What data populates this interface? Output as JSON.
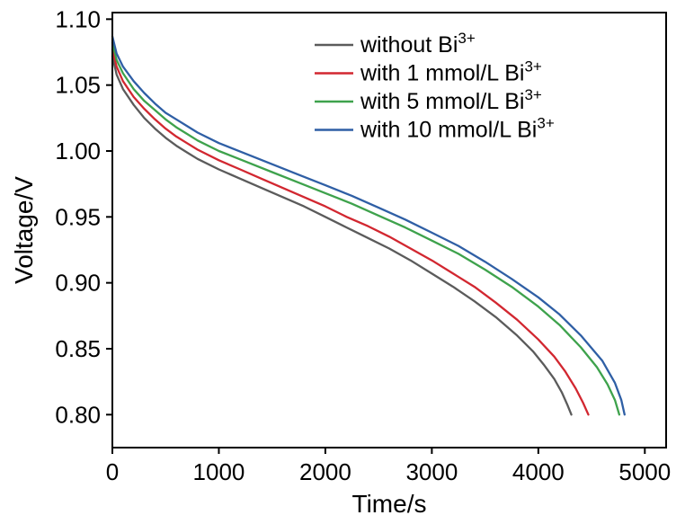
{
  "figure": {
    "background": "#ffffff"
  },
  "chart_data": {
    "type": "line",
    "title": "",
    "xlabel": "Time/s",
    "ylabel": "Voltage/V",
    "xlim": [
      0,
      5200
    ],
    "ylim": [
      0.775,
      1.105
    ],
    "x_ticks": [
      0,
      1000,
      2000,
      3000,
      4000,
      5000
    ],
    "y_ticks": [
      "0.80",
      "0.85",
      "0.90",
      "0.95",
      "1.00",
      "1.05",
      "1.10"
    ],
    "grid": false,
    "legend_position": "top-right",
    "axis_color": "#000000",
    "series": [
      {
        "label": "without Bi",
        "label_sup": "3+",
        "color": "#5b5b5b",
        "points": [
          [
            0,
            1.072
          ],
          [
            40,
            1.058
          ],
          [
            100,
            1.047
          ],
          [
            200,
            1.035
          ],
          [
            300,
            1.025
          ],
          [
            400,
            1.017
          ],
          [
            500,
            1.01
          ],
          [
            600,
            1.004
          ],
          [
            700,
            0.999
          ],
          [
            800,
            0.994
          ],
          [
            1000,
            0.986
          ],
          [
            1200,
            0.979
          ],
          [
            1400,
            0.972
          ],
          [
            1600,
            0.965
          ],
          [
            1800,
            0.958
          ],
          [
            2000,
            0.95
          ],
          [
            2200,
            0.942
          ],
          [
            2400,
            0.934
          ],
          [
            2600,
            0.926
          ],
          [
            2800,
            0.917
          ],
          [
            3000,
            0.907
          ],
          [
            3200,
            0.897
          ],
          [
            3400,
            0.886
          ],
          [
            3600,
            0.874
          ],
          [
            3800,
            0.86
          ],
          [
            3950,
            0.848
          ],
          [
            4050,
            0.838
          ],
          [
            4150,
            0.827
          ],
          [
            4220,
            0.817
          ],
          [
            4270,
            0.808
          ],
          [
            4310,
            0.8
          ]
        ]
      },
      {
        "label": "with 1 mmol/L Bi",
        "label_sup": "3+",
        "color": "#d22730",
        "points": [
          [
            0,
            1.077
          ],
          [
            40,
            1.064
          ],
          [
            100,
            1.053
          ],
          [
            200,
            1.041
          ],
          [
            300,
            1.032
          ],
          [
            400,
            1.024
          ],
          [
            500,
            1.017
          ],
          [
            600,
            1.011
          ],
          [
            700,
            1.006
          ],
          [
            800,
            1.001
          ],
          [
            1000,
            0.993
          ],
          [
            1200,
            0.986
          ],
          [
            1400,
            0.979
          ],
          [
            1600,
            0.972
          ],
          [
            1800,
            0.965
          ],
          [
            2000,
            0.958
          ],
          [
            2200,
            0.95
          ],
          [
            2400,
            0.943
          ],
          [
            2600,
            0.935
          ],
          [
            2800,
            0.926
          ],
          [
            3000,
            0.917
          ],
          [
            3200,
            0.907
          ],
          [
            3400,
            0.897
          ],
          [
            3600,
            0.885
          ],
          [
            3800,
            0.872
          ],
          [
            4000,
            0.857
          ],
          [
            4150,
            0.844
          ],
          [
            4250,
            0.833
          ],
          [
            4350,
            0.82
          ],
          [
            4420,
            0.809
          ],
          [
            4470,
            0.8
          ]
        ]
      },
      {
        "label": "with 5 mmol/L Bi",
        "label_sup": "3+",
        "color": "#3ea24c",
        "points": [
          [
            0,
            1.082
          ],
          [
            40,
            1.069
          ],
          [
            100,
            1.059
          ],
          [
            200,
            1.047
          ],
          [
            300,
            1.038
          ],
          [
            400,
            1.031
          ],
          [
            500,
            1.024
          ],
          [
            600,
            1.018
          ],
          [
            700,
            1.013
          ],
          [
            800,
            1.008
          ],
          [
            1000,
            1.0
          ],
          [
            1250,
            0.992
          ],
          [
            1500,
            0.984
          ],
          [
            1750,
            0.976
          ],
          [
            2000,
            0.968
          ],
          [
            2250,
            0.96
          ],
          [
            2500,
            0.951
          ],
          [
            2750,
            0.942
          ],
          [
            3000,
            0.932
          ],
          [
            3250,
            0.922
          ],
          [
            3500,
            0.91
          ],
          [
            3750,
            0.897
          ],
          [
            4000,
            0.882
          ],
          [
            4200,
            0.868
          ],
          [
            4400,
            0.851
          ],
          [
            4550,
            0.836
          ],
          [
            4650,
            0.823
          ],
          [
            4720,
            0.811
          ],
          [
            4760,
            0.8
          ]
        ]
      },
      {
        "label": "with 10 mmol/L Bi",
        "label_sup": "3+",
        "color": "#2f5fa5",
        "points": [
          [
            0,
            1.087
          ],
          [
            40,
            1.074
          ],
          [
            100,
            1.064
          ],
          [
            200,
            1.053
          ],
          [
            300,
            1.044
          ],
          [
            400,
            1.036
          ],
          [
            500,
            1.029
          ],
          [
            600,
            1.024
          ],
          [
            700,
            1.019
          ],
          [
            800,
            1.014
          ],
          [
            1000,
            1.006
          ],
          [
            1250,
            0.998
          ],
          [
            1500,
            0.99
          ],
          [
            1750,
            0.982
          ],
          [
            2000,
            0.974
          ],
          [
            2250,
            0.966
          ],
          [
            2500,
            0.957
          ],
          [
            2750,
            0.948
          ],
          [
            3000,
            0.938
          ],
          [
            3250,
            0.928
          ],
          [
            3500,
            0.916
          ],
          [
            3750,
            0.903
          ],
          [
            4000,
            0.889
          ],
          [
            4200,
            0.876
          ],
          [
            4400,
            0.86
          ],
          [
            4600,
            0.841
          ],
          [
            4720,
            0.824
          ],
          [
            4780,
            0.811
          ],
          [
            4810,
            0.8
          ]
        ]
      }
    ]
  }
}
